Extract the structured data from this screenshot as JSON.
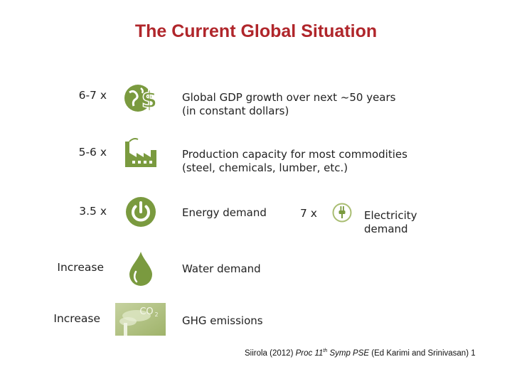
{
  "slide": {
    "title": "The Current Global Situation"
  },
  "rows": [
    {
      "multiplier": "6-7 x",
      "line1": "Global GDP growth over next ~50 years",
      "line2": "(in constant dollars)",
      "icon": "globe-dollar-icon"
    },
    {
      "multiplier": "5-6 x",
      "line1": "Production capacity for most commodities",
      "line2": "(steel, chemicals, lumber, etc.)",
      "icon": "factory-icon"
    },
    {
      "multiplier": "3.5 x",
      "line1": "Energy demand",
      "line2": "",
      "icon": "power-icon"
    },
    {
      "multiplier": "Increase",
      "line1": "Water demand",
      "line2": "",
      "icon": "water-drop-icon"
    },
    {
      "multiplier": "Increase",
      "line1": "GHG emissions",
      "line2": "",
      "icon": "co2-smokestack-icon"
    }
  ],
  "electricity": {
    "multiplier": "7 x",
    "line1": "Electricity",
    "line2": "demand",
    "icon": "plug-icon"
  },
  "citation": {
    "author": "Siirola (2012)",
    "proc": "Proc 11",
    "th": "th",
    "symp": "Symp PSE",
    "eds": "(Ed Karimi and Srinivasan)",
    "page": "1"
  },
  "colors": {
    "title": "#b0262b",
    "icon_green": "#7a9a3f",
    "icon_green_light": "#a9bd72"
  }
}
